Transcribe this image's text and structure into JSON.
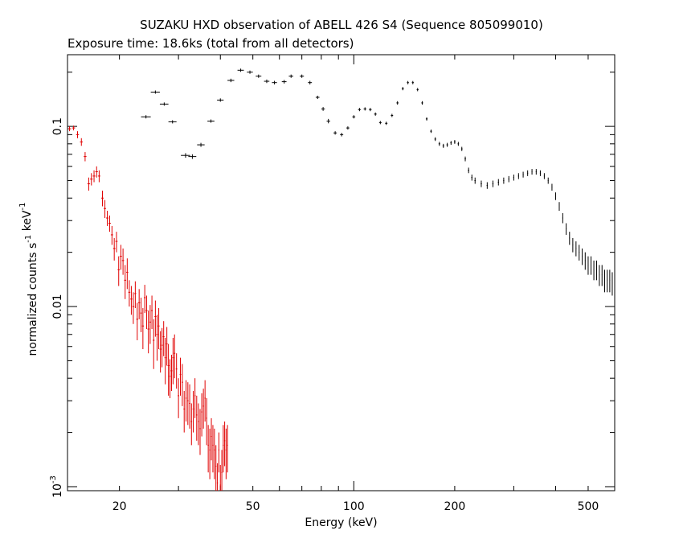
{
  "chart_data": {
    "type": "scatter",
    "title": "SUZAKU HXD observation of ABELL 426 S4 (Sequence 805099010)",
    "subtitle": "Exposure time: 18.6ks (total from all detectors)",
    "xlabel": "Energy (keV)",
    "ylabel": "normalized counts s^-1 keV^-1",
    "xscale": "log",
    "yscale": "log",
    "xlim": [
      14,
      600
    ],
    "ylim": [
      0.00095,
      0.25
    ],
    "grid": false,
    "x_ticks": [
      {
        "value": 20,
        "label": "20"
      },
      {
        "value": 50,
        "label": "50"
      },
      {
        "value": 100,
        "label": "100"
      },
      {
        "value": 200,
        "label": "200"
      },
      {
        "value": 500,
        "label": "500"
      }
    ],
    "y_ticks": [
      {
        "value": 0.1,
        "label": "0.1"
      },
      {
        "value": 0.01,
        "label": "0.01"
      },
      {
        "value": 0.001,
        "label": "10^-3"
      }
    ],
    "series": [
      {
        "color": "#000000",
        "points": [
          [
            24,
            0.113,
            0.8,
            0
          ],
          [
            25.6,
            0.155,
            0.8,
            0
          ],
          [
            27.2,
            0.133,
            0.8,
            0
          ],
          [
            28.8,
            0.106,
            0.8,
            0
          ],
          [
            31.5,
            0.069,
            1.0,
            0.002
          ],
          [
            33,
            0.068,
            0.9,
            0.002
          ],
          [
            35,
            0.079,
            0.9,
            0.002
          ],
          [
            37.5,
            0.107,
            0.9,
            0.002
          ],
          [
            40,
            0.14,
            0.9,
            0.003
          ],
          [
            43,
            0.18,
            1,
            0.004
          ],
          [
            46,
            0.205,
            1,
            0.004
          ],
          [
            49,
            0.2,
            1,
            0.004
          ],
          [
            52,
            0.19,
            1,
            0.004
          ],
          [
            55,
            0.178,
            1,
            0.004
          ],
          [
            58,
            0.175,
            1,
            0.004
          ],
          [
            62,
            0.177,
            1,
            0.004
          ],
          [
            65,
            0.19,
            1,
            0.004
          ],
          [
            70,
            0.19,
            1,
            0.004
          ],
          [
            74,
            0.175,
            1,
            0.004
          ],
          [
            78,
            0.145,
            1,
            0.003
          ],
          [
            81,
            0.125,
            1,
            0.003
          ],
          [
            84,
            0.107,
            1,
            0.003
          ],
          [
            88,
            0.092,
            1,
            0.002
          ],
          [
            92,
            0.09,
            1,
            0.002
          ],
          [
            96,
            0.098,
            1,
            0.002
          ],
          [
            100,
            0.113,
            1,
            0.002
          ],
          [
            104,
            0.124,
            1,
            0.002
          ],
          [
            108,
            0.125,
            1,
            0.002
          ],
          [
            112,
            0.124,
            1,
            0.002
          ],
          [
            116,
            0.117,
            1,
            0.002
          ],
          [
            120,
            0.105,
            1,
            0.002
          ],
          [
            125,
            0.104,
            1,
            0.002
          ],
          [
            130,
            0.115,
            1,
            0.002
          ],
          [
            135,
            0.135,
            1,
            0.003
          ],
          [
            140,
            0.162,
            1,
            0.003
          ],
          [
            145,
            0.175,
            1,
            0.003
          ],
          [
            150,
            0.175,
            1,
            0.003
          ],
          [
            155,
            0.16,
            1,
            0.003
          ],
          [
            160,
            0.135,
            1,
            0.003
          ],
          [
            165,
            0.11,
            1,
            0.002
          ],
          [
            170,
            0.094,
            1,
            0.002
          ],
          [
            175,
            0.085,
            1,
            0.002
          ],
          [
            180,
            0.08,
            1,
            0.002
          ],
          [
            185,
            0.078,
            1,
            0.002
          ],
          [
            190,
            0.079,
            1,
            0.002
          ],
          [
            195,
            0.081,
            1,
            0.002
          ],
          [
            200,
            0.082,
            1,
            0.002
          ],
          [
            205,
            0.08,
            1,
            0.002
          ],
          [
            210,
            0.075,
            1,
            0.002
          ],
          [
            215,
            0.066,
            1,
            0.002
          ],
          [
            220,
            0.057,
            1,
            0.002
          ],
          [
            225,
            0.052,
            1,
            0.002
          ],
          [
            230,
            0.05,
            1,
            0.002
          ],
          [
            240,
            0.048,
            1,
            0.002
          ],
          [
            250,
            0.047,
            1,
            0.002
          ],
          [
            260,
            0.048,
            1,
            0.002
          ],
          [
            270,
            0.049,
            1,
            0.002
          ],
          [
            280,
            0.05,
            1,
            0.002
          ],
          [
            290,
            0.051,
            1,
            0.002
          ],
          [
            300,
            0.052,
            1,
            0.002
          ],
          [
            310,
            0.053,
            1,
            0.002
          ],
          [
            320,
            0.054,
            1,
            0.002
          ],
          [
            330,
            0.055,
            1,
            0.002
          ],
          [
            340,
            0.056,
            1,
            0.002
          ],
          [
            350,
            0.056,
            1,
            0.002
          ],
          [
            360,
            0.055,
            1,
            0.002
          ],
          [
            370,
            0.053,
            1,
            0.002
          ],
          [
            380,
            0.05,
            1,
            0.002
          ],
          [
            390,
            0.046,
            1,
            0.002
          ],
          [
            400,
            0.041,
            1,
            0.002
          ],
          [
            410,
            0.036,
            1,
            0.002
          ],
          [
            420,
            0.031,
            1,
            0.002
          ],
          [
            430,
            0.027,
            1,
            0.002
          ],
          [
            440,
            0.024,
            1,
            0.002
          ],
          [
            450,
            0.022,
            1,
            0.002
          ],
          [
            460,
            0.021,
            1,
            0.002
          ],
          [
            470,
            0.02,
            1,
            0.002
          ],
          [
            480,
            0.019,
            1,
            0.002
          ],
          [
            490,
            0.018,
            1,
            0.002
          ],
          [
            500,
            0.017,
            1,
            0.002
          ],
          [
            510,
            0.017,
            1,
            0.002
          ],
          [
            520,
            0.016,
            1,
            0.002
          ],
          [
            530,
            0.016,
            1,
            0.002
          ],
          [
            540,
            0.015,
            1,
            0.002
          ],
          [
            550,
            0.015,
            1,
            0.002
          ],
          [
            560,
            0.014,
            1,
            0.002
          ],
          [
            570,
            0.014,
            1,
            0.002
          ],
          [
            580,
            0.014,
            1,
            0.002
          ],
          [
            590,
            0.0135,
            1,
            0.002
          ]
        ]
      },
      {
        "color": "#e00000",
        "points": [
          [
            14.2,
            0.097,
            0.15,
            0.003
          ],
          [
            14.6,
            0.098,
            0.15,
            0.003
          ],
          [
            15.0,
            0.09,
            0.15,
            0.004
          ],
          [
            15.4,
            0.082,
            0.15,
            0.004
          ],
          [
            15.8,
            0.068,
            0.15,
            0.004
          ],
          [
            16.2,
            0.048,
            0.15,
            0.004
          ],
          [
            16.5,
            0.051,
            0.15,
            0.004
          ],
          [
            16.8,
            0.053,
            0.15,
            0.004
          ],
          [
            17.1,
            0.056,
            0.15,
            0.004
          ],
          [
            17.4,
            0.053,
            0.15,
            0.004
          ],
          [
            17.8,
            0.04,
            0.15,
            0.004
          ],
          [
            18.1,
            0.035,
            0.15,
            0.004
          ],
          [
            18.4,
            0.031,
            0.15,
            0.003
          ],
          [
            18.7,
            0.029,
            0.15,
            0.003
          ],
          [
            19.0,
            0.025,
            0.15,
            0.003
          ],
          [
            19.3,
            0.021,
            0.15,
            0.003
          ],
          [
            19.6,
            0.023,
            0.15,
            0.003
          ],
          [
            19.9,
            0.016,
            0.15,
            0.003
          ],
          [
            20.2,
            0.019,
            0.15,
            0.003
          ],
          [
            20.5,
            0.018,
            0.15,
            0.003
          ],
          [
            20.8,
            0.014,
            0.15,
            0.003
          ],
          [
            21.1,
            0.0155,
            0.15,
            0.003
          ],
          [
            21.4,
            0.012,
            0.15,
            0.002
          ],
          [
            21.7,
            0.011,
            0.15,
            0.002
          ],
          [
            22.0,
            0.01,
            0.15,
            0.002
          ],
          [
            22.3,
            0.0118,
            0.15,
            0.002
          ],
          [
            22.6,
            0.0085,
            0.15,
            0.002
          ],
          [
            22.9,
            0.0105,
            0.15,
            0.002
          ],
          [
            23.2,
            0.0092,
            0.15,
            0.002
          ],
          [
            23.5,
            0.0078,
            0.15,
            0.002
          ],
          [
            23.8,
            0.0112,
            0.15,
            0.002
          ],
          [
            24.1,
            0.0095,
            0.15,
            0.002
          ],
          [
            24.4,
            0.0075,
            0.15,
            0.002
          ],
          [
            24.7,
            0.0082,
            0.15,
            0.002
          ],
          [
            25.0,
            0.0095,
            0.15,
            0.002
          ],
          [
            25.3,
            0.0065,
            0.15,
            0.002
          ],
          [
            25.6,
            0.0088,
            0.15,
            0.002
          ],
          [
            25.9,
            0.007,
            0.15,
            0.002
          ],
          [
            26.2,
            0.0078,
            0.15,
            0.002
          ],
          [
            26.5,
            0.0058,
            0.15,
            0.0015
          ],
          [
            26.8,
            0.0061,
            0.15,
            0.0015
          ],
          [
            27.1,
            0.0068,
            0.15,
            0.0015
          ],
          [
            27.4,
            0.0052,
            0.15,
            0.0015
          ],
          [
            27.7,
            0.0062,
            0.15,
            0.0015
          ],
          [
            28.0,
            0.0047,
            0.15,
            0.0015
          ],
          [
            28.3,
            0.0041,
            0.15,
            0.001
          ],
          [
            28.6,
            0.0044,
            0.15,
            0.001
          ],
          [
            28.9,
            0.0052,
            0.15,
            0.0015
          ],
          [
            29.2,
            0.0055,
            0.15,
            0.0015
          ],
          [
            29.6,
            0.0045,
            0.15,
            0.001
          ],
          [
            30.0,
            0.0032,
            0.15,
            0.0008
          ],
          [
            30.4,
            0.0042,
            0.15,
            0.001
          ],
          [
            30.8,
            0.0038,
            0.15,
            0.001
          ],
          [
            31.2,
            0.0027,
            0.15,
            0.0007
          ],
          [
            31.6,
            0.0031,
            0.15,
            0.0008
          ],
          [
            32.0,
            0.003,
            0.15,
            0.0008
          ],
          [
            32.4,
            0.0029,
            0.15,
            0.0008
          ],
          [
            32.8,
            0.0023,
            0.15,
            0.0006
          ],
          [
            33.2,
            0.0027,
            0.15,
            0.0007
          ],
          [
            33.6,
            0.0032,
            0.15,
            0.0008
          ],
          [
            34.0,
            0.0025,
            0.15,
            0.0007
          ],
          [
            34.4,
            0.0023,
            0.15,
            0.0006
          ],
          [
            34.8,
            0.0021,
            0.15,
            0.0006
          ],
          [
            35.2,
            0.0026,
            0.15,
            0.0007
          ],
          [
            35.6,
            0.0028,
            0.15,
            0.0007
          ],
          [
            36.0,
            0.0031,
            0.15,
            0.0008
          ],
          [
            36.4,
            0.0024,
            0.15,
            0.0007
          ],
          [
            36.8,
            0.0017,
            0.15,
            0.0005
          ],
          [
            37.2,
            0.0016,
            0.15,
            0.0005
          ],
          [
            37.6,
            0.0019,
            0.15,
            0.0005
          ],
          [
            38.0,
            0.0017,
            0.15,
            0.0005
          ],
          [
            38.4,
            0.0016,
            0.15,
            0.0005
          ],
          [
            38.8,
            0.0013,
            0.15,
            0.0004
          ],
          [
            39.2,
            0.00105,
            0.15,
            0.0003
          ],
          [
            39.6,
            0.0016,
            0.15,
            0.0004
          ],
          [
            40.0,
            0.00102,
            0.15,
            0.0003
          ],
          [
            40.4,
            0.0012,
            0.15,
            0.0004
          ],
          [
            40.8,
            0.0017,
            0.15,
            0.0005
          ],
          [
            41.2,
            0.0018,
            0.15,
            0.0005
          ],
          [
            41.6,
            0.0016,
            0.15,
            0.0005
          ],
          [
            42.0,
            0.0017,
            0.15,
            0.0005
          ]
        ]
      }
    ]
  }
}
